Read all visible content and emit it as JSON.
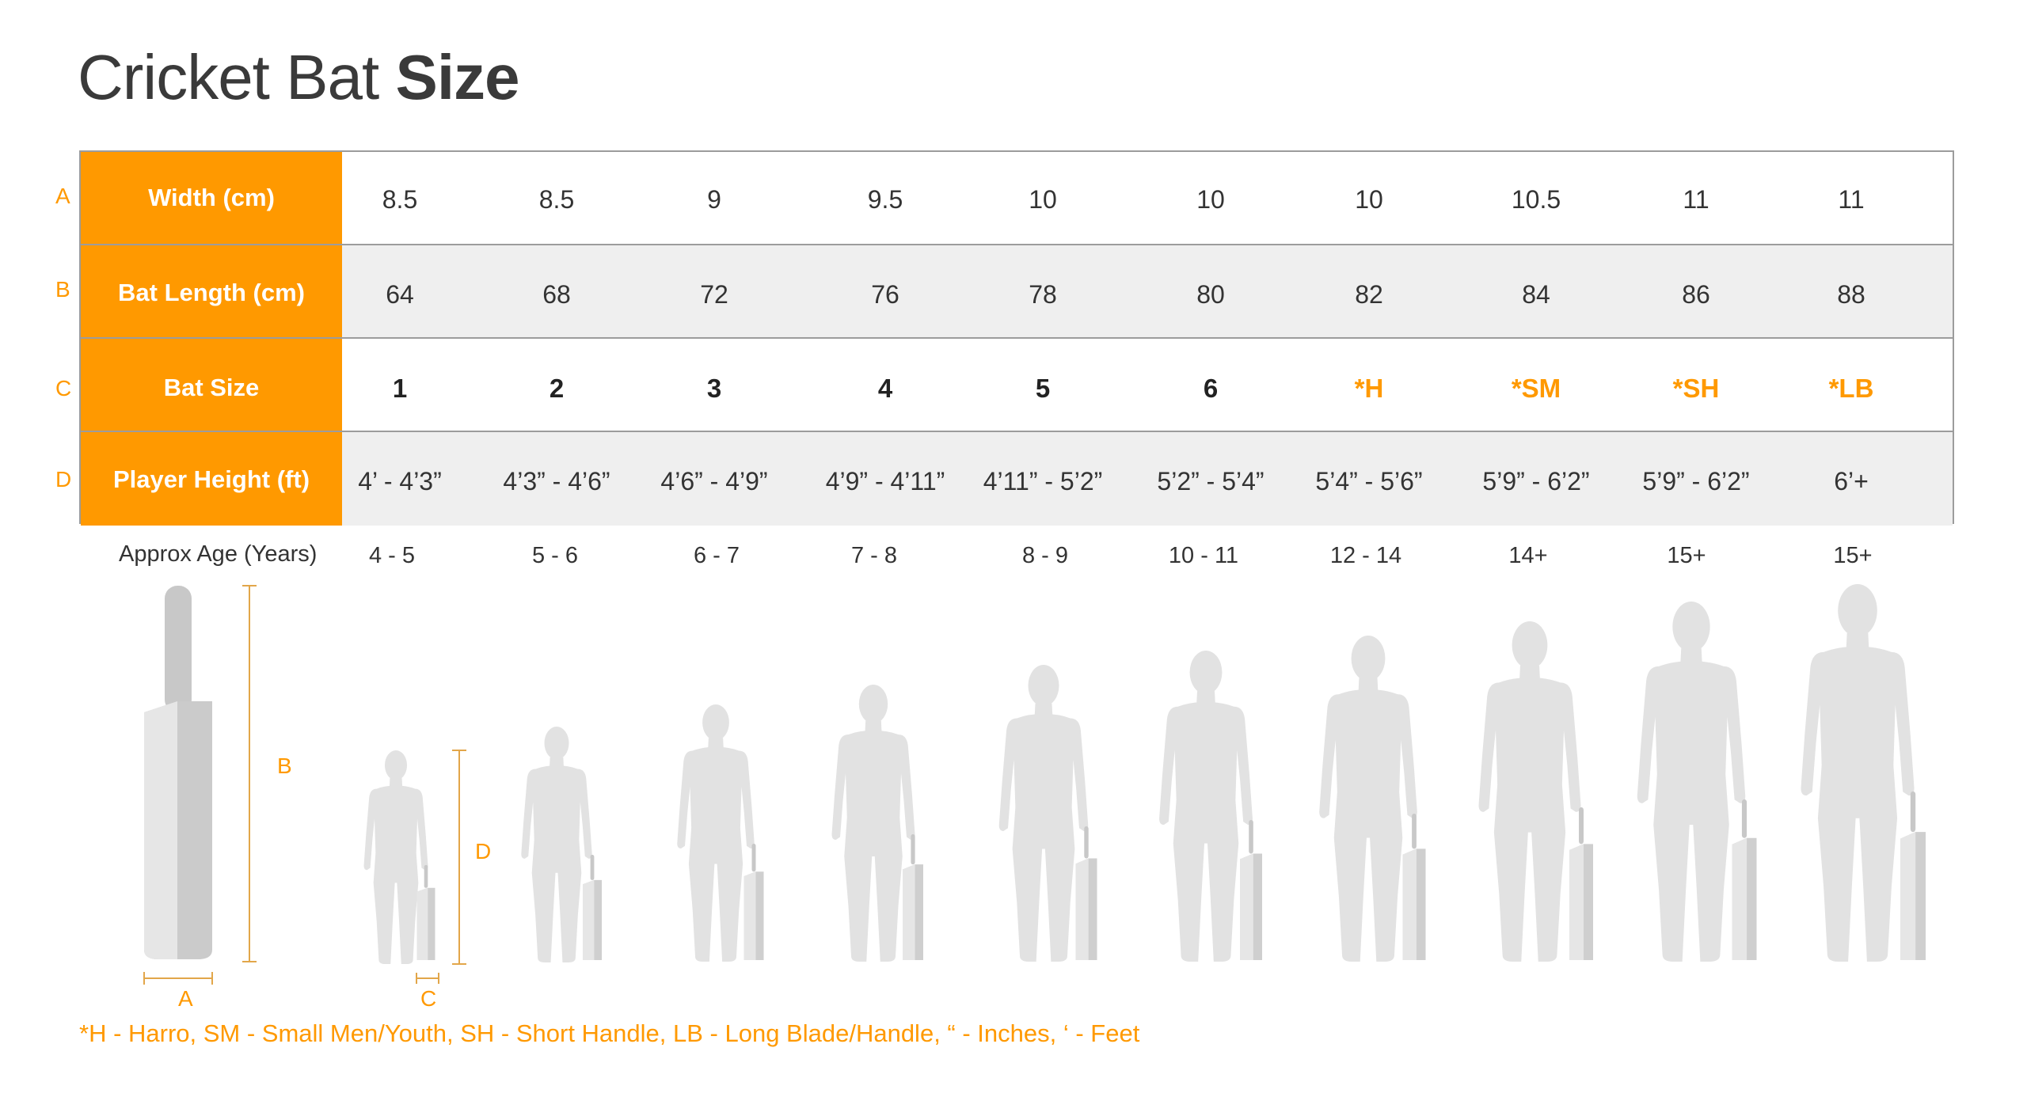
{
  "title": {
    "light": "Cricket Bat",
    "bold": "Size"
  },
  "row_letters": [
    "A",
    "B",
    "C",
    "D"
  ],
  "rows": [
    {
      "label": "Width (cm)",
      "values": [
        "8.5",
        "8.5",
        "9",
        "9.5",
        "10",
        "10",
        "10",
        "10.5",
        "11",
        "11"
      ]
    },
    {
      "label": "Bat Length (cm)",
      "values": [
        "64",
        "68",
        "72",
        "76",
        "78",
        "80",
        "82",
        "84",
        "86",
        "88"
      ]
    },
    {
      "label": "Bat Size",
      "values": [
        "1",
        "2",
        "3",
        "4",
        "5",
        "6",
        "*H",
        "*SM",
        "*SH",
        "*LB"
      ]
    },
    {
      "label": "Player Height (ft)",
      "values": [
        "4’ - 4’3”",
        "4’3” - 4’6”",
        "4’6” - 4’9”",
        "4’9” - 4’11”",
        "4’11” - 5’2”",
        "5’2” - 5’4”",
        "5’4” - 5’6”",
        "5’9” - 6’2”",
        "5’9” - 6’2”",
        "6’+"
      ]
    }
  ],
  "age_row": {
    "label": "Approx Age (Years)",
    "values": [
      "4 - 5",
      "5 - 6",
      "6 - 7",
      "7 - 8",
      "8 - 9",
      "10 - 11",
      "12 - 14",
      "14+",
      "15+",
      "15+"
    ]
  },
  "dimension_labels": {
    "a": "A",
    "b": "B",
    "c": "C",
    "d": "D"
  },
  "footnote": "*H - Harro, SM - Small Men/Youth, SH - Short Handle,  LB - Long Blade/Handle, “ - Inches, ‘ - Feet",
  "colors": {
    "accent": "#ff9900",
    "figure": "#e2e2e2",
    "bat_front": "#e6e6e6",
    "bat_side": "#c8c8c8"
  }
}
